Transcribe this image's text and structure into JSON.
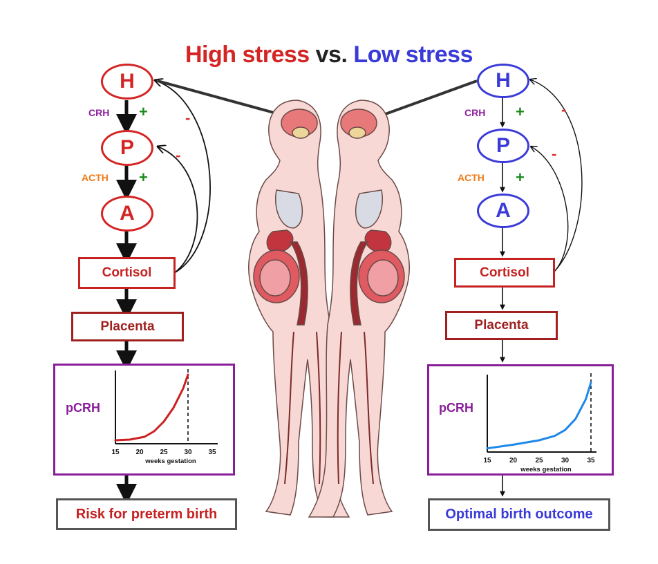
{
  "title": {
    "high": "High stress",
    "vs": "vs.",
    "low": "Low stress"
  },
  "left": {
    "h": "H",
    "p": "P",
    "a": "A",
    "crh": "CRH",
    "acth": "ACTH",
    "plus": "+",
    "minus": "-",
    "cortisol": "Cortisol",
    "placenta": "Placenta",
    "pcrh": "pCRH",
    "outcome": "Risk for preterm birth",
    "color": "#d42424"
  },
  "right": {
    "h": "H",
    "p": "P",
    "a": "A",
    "crh": "CRH",
    "acth": "ACTH",
    "plus": "+",
    "minus": "-",
    "cortisol": "Cortisol",
    "placenta": "Placenta",
    "pcrh": "pCRH",
    "outcome": "Optimal birth outcome",
    "color": "#3a3ad8"
  },
  "chart_data": [
    {
      "type": "line",
      "xlabel": "weeks gestation",
      "ylabel": "pCRH",
      "x_ticks": [
        "15",
        "20",
        "25",
        "30",
        "35"
      ],
      "xlim": [
        15,
        35
      ],
      "series": [
        {
          "x": [
            15,
            18,
            21,
            23,
            25,
            27,
            29,
            30
          ],
          "values": [
            0.05,
            0.06,
            0.1,
            0.18,
            0.32,
            0.52,
            0.8,
            1.0
          ]
        }
      ],
      "line_color": "#cc1f1f",
      "dashed_line_at": 30
    },
    {
      "type": "line",
      "xlabel": "weeks gestation",
      "ylabel": "pCRH",
      "x_ticks": [
        "15",
        "20",
        "25",
        "30",
        "35"
      ],
      "xlim": [
        15,
        35
      ],
      "series": [
        {
          "x": [
            15,
            20,
            25,
            28,
            30,
            32,
            34,
            35
          ],
          "values": [
            0.05,
            0.1,
            0.16,
            0.22,
            0.3,
            0.45,
            0.72,
            0.95
          ]
        }
      ],
      "line_color": "#1e88e8",
      "dashed_line_at": 35
    }
  ]
}
